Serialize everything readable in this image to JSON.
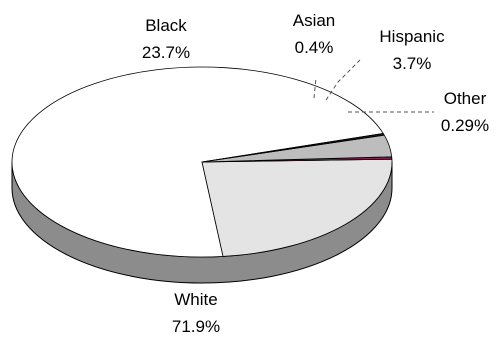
{
  "chart_data": {
    "type": "pie",
    "style": "3d",
    "categories": [
      "White",
      "Black",
      "Asian",
      "Hispanic",
      "Other"
    ],
    "values": [
      71.9,
      23.7,
      0.4,
      3.7,
      0.29
    ],
    "labels": [
      "71.9%",
      "23.7%",
      "0.4%",
      "3.7%",
      "0.29%"
    ],
    "colors": {
      "White": "#ffffff",
      "Black": "#e4e4e4",
      "Asian": "#8a2252",
      "Hispanic": "#bdbdbd",
      "Other": "#1a1a1a",
      "side": "#8c8c8c",
      "outline": "#000000",
      "leader": "#555555"
    },
    "title": "",
    "legend": "none",
    "grid": false
  }
}
